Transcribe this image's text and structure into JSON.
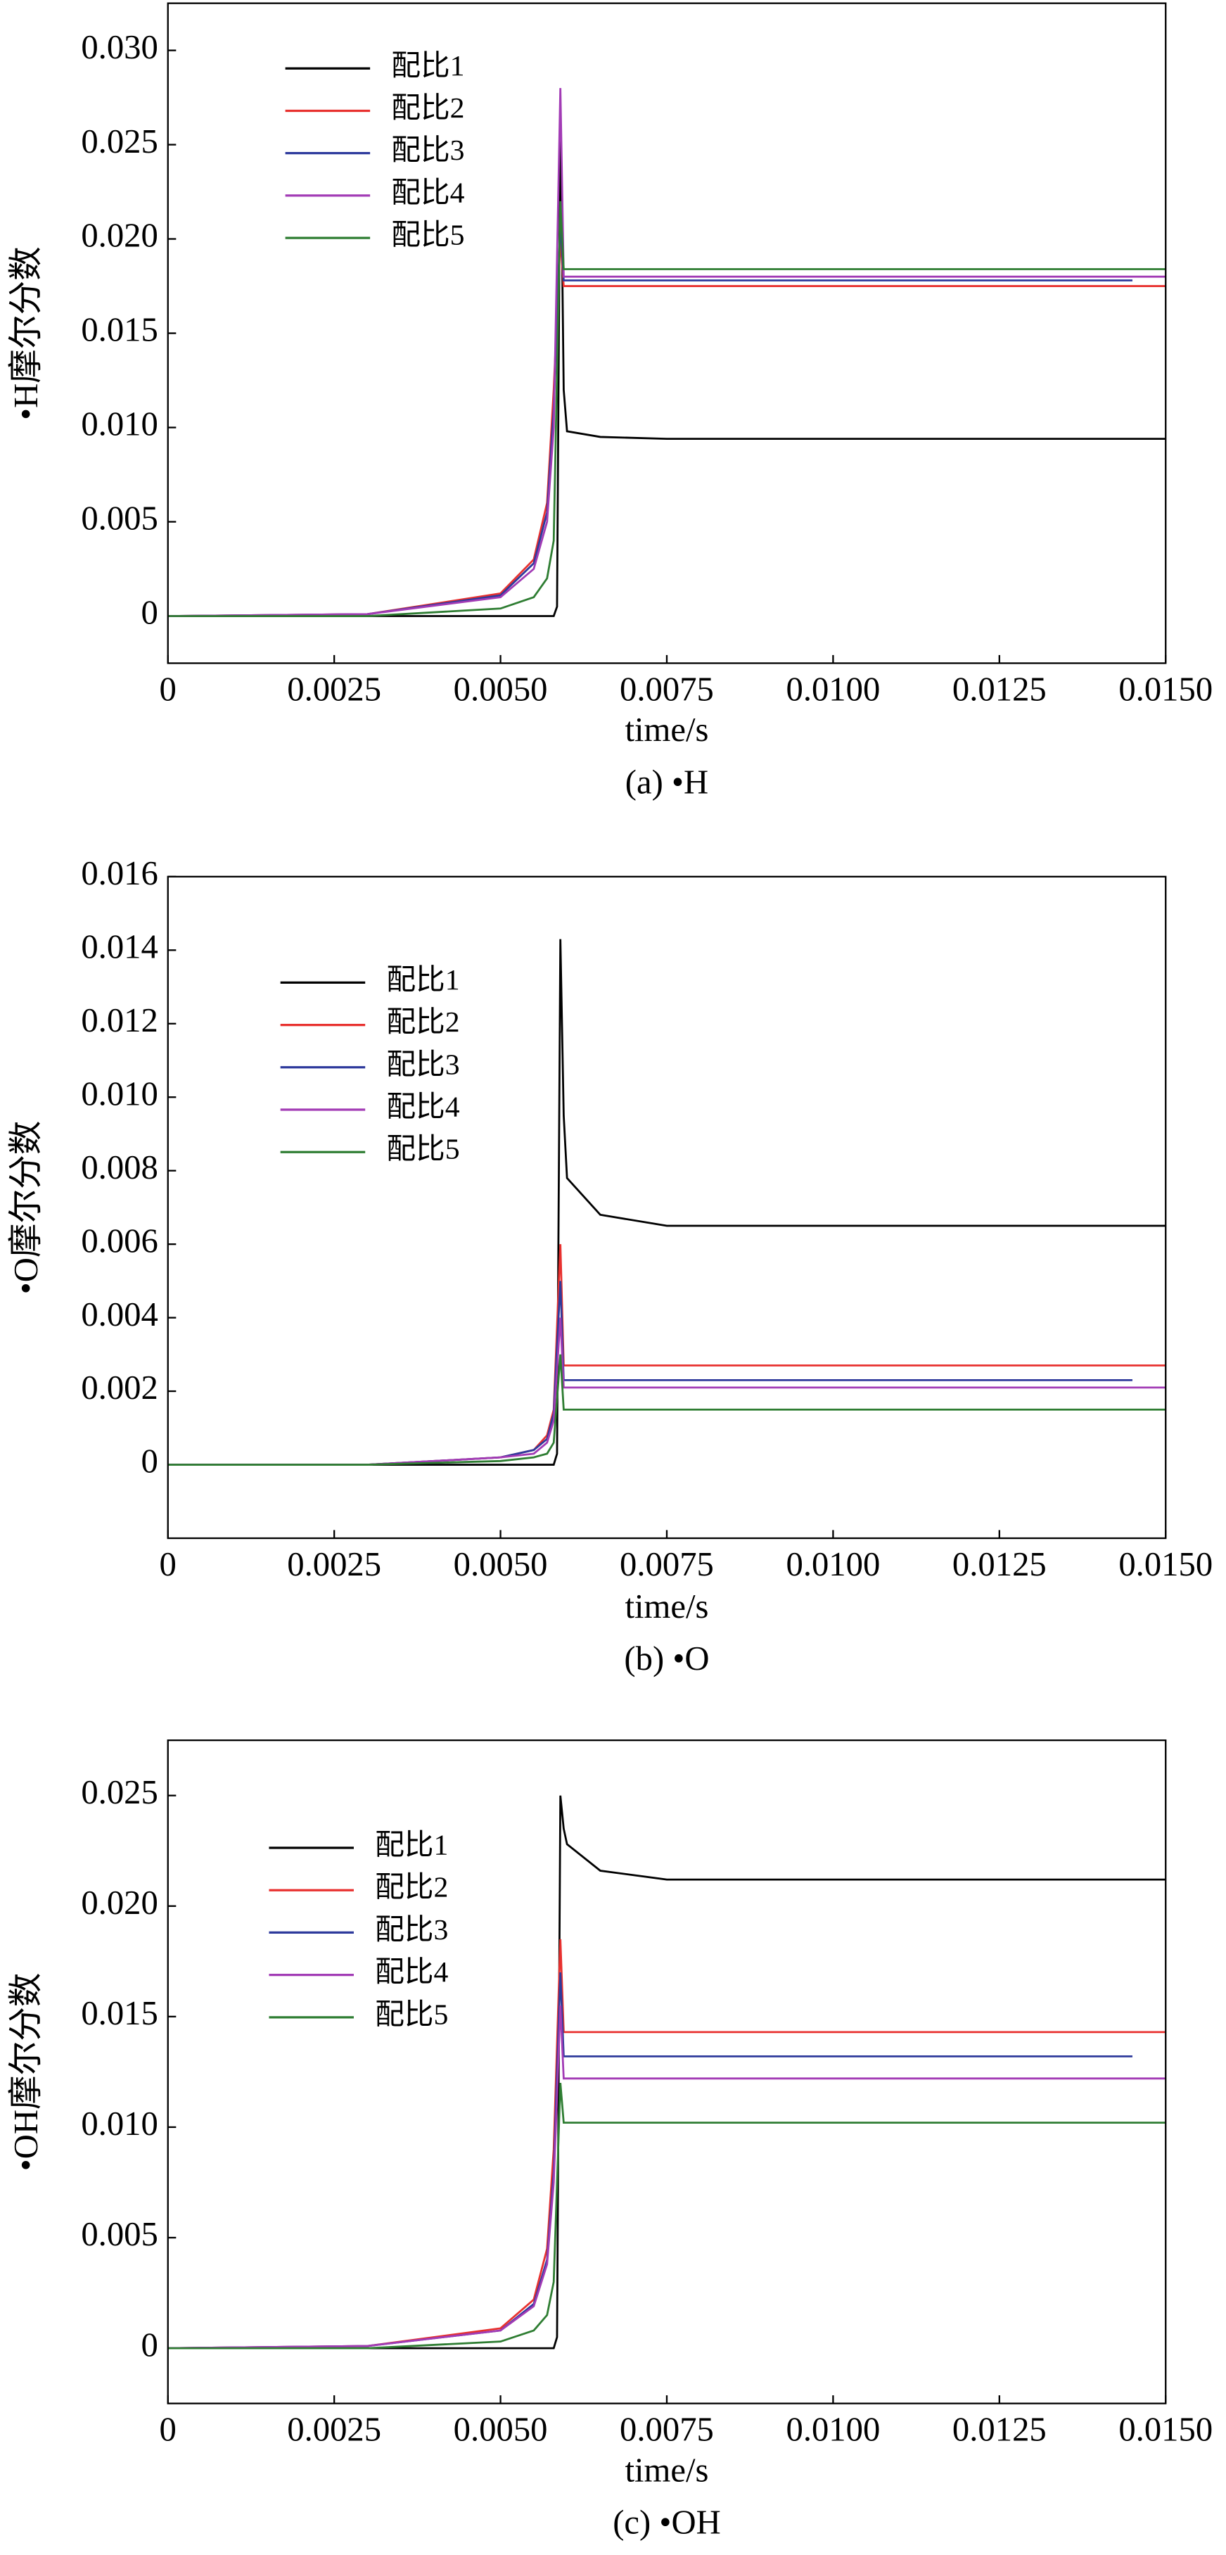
{
  "chart_data": [
    {
      "type": "line",
      "xlabel": "time/s",
      "ylabel": "•H摩尔分数",
      "caption": "(a) •H",
      "xlim": [
        0,
        0.015
      ],
      "ylim": [
        -0.0025,
        0.0325
      ],
      "xticks": [
        0,
        0.0025,
        {
          "value": 0.005,
          "label": "0.0050"
        },
        0.0075,
        {
          "value": 0.01,
          "label": "0.0100"
        },
        0.0125,
        {
          "value": 0.015,
          "label": "0.0150"
        }
      ],
      "yticks": [
        0,
        0.005,
        {
          "value": 0.01,
          "label": "0.010"
        },
        0.015,
        {
          "value": 0.02,
          "label": "0.020"
        },
        0.025,
        {
          "value": 0.03,
          "label": "0.030"
        }
      ],
      "series": [
        {
          "name": "配比1",
          "color": "#000000",
          "x": [
            0,
            0.003,
            0.005,
            0.0058,
            0.00585,
            0.0059,
            0.00595,
            0.006,
            0.0065,
            0.0075,
            0.015
          ],
          "values": [
            0,
            0,
            0,
            0,
            0.0005,
            0.027,
            0.012,
            0.0098,
            0.0095,
            0.0094,
            0.0094
          ]
        },
        {
          "name": "配比2",
          "color": "#e8312f",
          "x": [
            0,
            0.003,
            0.005,
            0.0055,
            0.0057,
            0.0058,
            0.0059,
            0.00595,
            0.015
          ],
          "values": [
            0,
            0.0001,
            0.0012,
            0.003,
            0.006,
            0.012,
            0.02,
            0.0175,
            0.0175
          ]
        },
        {
          "name": "配比3",
          "color": "#2e3a9c",
          "x": [
            0,
            0.003,
            0.005,
            0.0055,
            0.0057,
            0.0058,
            0.0059,
            0.00595,
            0.0145
          ],
          "values": [
            0,
            0.0001,
            0.0011,
            0.0028,
            0.0055,
            0.011,
            0.021,
            0.0178,
            0.0178
          ]
        },
        {
          "name": "配比4",
          "color": "#a23bb5",
          "x": [
            0,
            0.003,
            0.005,
            0.0055,
            0.0057,
            0.0058,
            0.0059,
            0.00595,
            0.015
          ],
          "values": [
            0,
            0.0001,
            0.001,
            0.0025,
            0.005,
            0.01,
            0.028,
            0.018,
            0.018
          ]
        },
        {
          "name": "配比5",
          "color": "#2e7d32",
          "x": [
            0,
            0.003,
            0.005,
            0.0055,
            0.0057,
            0.0058,
            0.0059,
            0.00595,
            0.015
          ],
          "values": [
            0,
            0,
            0.0004,
            0.001,
            0.002,
            0.004,
            0.022,
            0.0184,
            0.0184
          ]
        }
      ]
    },
    {
      "type": "line",
      "xlabel": "time/s",
      "ylabel": "•O摩尔分数",
      "caption": "(b) •O",
      "xlim": [
        0,
        0.015
      ],
      "ylim": [
        -0.002,
        0.016
      ],
      "xticks": [
        0,
        0.0025,
        {
          "value": 0.005,
          "label": "0.0050"
        },
        0.0075,
        {
          "value": 0.01,
          "label": "0.0100"
        },
        0.0125,
        {
          "value": 0.015,
          "label": "0.0150"
        }
      ],
      "yticks": [
        0,
        0.002,
        0.004,
        0.006,
        0.008,
        {
          "value": 0.01,
          "label": "0.010"
        },
        0.012,
        0.014,
        0.016
      ],
      "series": [
        {
          "name": "配比1",
          "color": "#000000",
          "x": [
            0,
            0.003,
            0.005,
            0.0058,
            0.00585,
            0.0059,
            0.00595,
            0.006,
            0.0065,
            0.0075,
            0.015
          ],
          "values": [
            0,
            0,
            0,
            0,
            0.0003,
            0.0143,
            0.0095,
            0.0078,
            0.0068,
            0.0065,
            0.0065
          ]
        },
        {
          "name": "配比2",
          "color": "#e8312f",
          "x": [
            0,
            0.003,
            0.005,
            0.0055,
            0.0057,
            0.0058,
            0.0059,
            0.00595,
            0.015
          ],
          "values": [
            0,
            0,
            0.0002,
            0.0004,
            0.0008,
            0.0015,
            0.006,
            0.0027,
            0.0027
          ]
        },
        {
          "name": "配比3",
          "color": "#2e3a9c",
          "x": [
            0,
            0.003,
            0.005,
            0.0055,
            0.0057,
            0.0058,
            0.0059,
            0.00595,
            0.0145
          ],
          "values": [
            0,
            0,
            0.0002,
            0.0004,
            0.0007,
            0.0014,
            0.005,
            0.0023,
            0.0023
          ]
        },
        {
          "name": "配比4",
          "color": "#a23bb5",
          "x": [
            0,
            0.003,
            0.005,
            0.0055,
            0.0057,
            0.0058,
            0.0059,
            0.00595,
            0.015
          ],
          "values": [
            0,
            0,
            0.0002,
            0.0003,
            0.0006,
            0.0012,
            0.004,
            0.0021,
            0.0021
          ]
        },
        {
          "name": "配比5",
          "color": "#2e7d32",
          "x": [
            0,
            0.003,
            0.005,
            0.0055,
            0.0057,
            0.0058,
            0.0059,
            0.00595,
            0.015
          ],
          "values": [
            0,
            0,
            0.0001,
            0.0002,
            0.0003,
            0.0006,
            0.003,
            0.0015,
            0.0015
          ]
        }
      ]
    },
    {
      "type": "line",
      "xlabel": "time/s",
      "ylabel": "•OH摩尔分数",
      "caption": "(c) •OH",
      "xlim": [
        0,
        0.015
      ],
      "ylim": [
        -0.0025,
        0.0275
      ],
      "xticks": [
        0,
        0.0025,
        {
          "value": 0.005,
          "label": "0.0050"
        },
        0.0075,
        {
          "value": 0.01,
          "label": "0.0100"
        },
        0.0125,
        {
          "value": 0.015,
          "label": "0.0150"
        }
      ],
      "yticks": [
        0,
        0.005,
        {
          "value": 0.01,
          "label": "0.010"
        },
        0.015,
        {
          "value": 0.02,
          "label": "0.020"
        },
        0.025
      ],
      "series": [
        {
          "name": "配比1",
          "color": "#000000",
          "x": [
            0,
            0.003,
            0.005,
            0.0058,
            0.00585,
            0.0059,
            0.00595,
            0.006,
            0.0065,
            0.0075,
            0.015
          ],
          "values": [
            0,
            0,
            0,
            0,
            0.0005,
            0.025,
            0.0235,
            0.0228,
            0.0216,
            0.0212,
            0.0212
          ]
        },
        {
          "name": "配比2",
          "color": "#e8312f",
          "x": [
            0,
            0.003,
            0.005,
            0.0055,
            0.0057,
            0.0058,
            0.0059,
            0.00595,
            0.015
          ],
          "values": [
            0,
            0.0001,
            0.0009,
            0.0022,
            0.0045,
            0.009,
            0.0185,
            0.0143,
            0.0143
          ]
        },
        {
          "name": "配比3",
          "color": "#2e3a9c",
          "x": [
            0,
            0.003,
            0.005,
            0.0055,
            0.0057,
            0.0058,
            0.0059,
            0.00595,
            0.0145
          ],
          "values": [
            0,
            0.0001,
            0.0008,
            0.002,
            0.004,
            0.008,
            0.017,
            0.0132,
            0.0132
          ]
        },
        {
          "name": "配比4",
          "color": "#a23bb5",
          "x": [
            0,
            0.003,
            0.005,
            0.0055,
            0.0057,
            0.0058,
            0.0059,
            0.00595,
            0.015
          ],
          "values": [
            0,
            0.0001,
            0.0008,
            0.0019,
            0.0038,
            0.0075,
            0.0155,
            0.0122,
            0.0122
          ]
        },
        {
          "name": "配比5",
          "color": "#2e7d32",
          "x": [
            0,
            0.003,
            0.005,
            0.0055,
            0.0057,
            0.0058,
            0.0059,
            0.00595,
            0.015
          ],
          "values": [
            0,
            0,
            0.0003,
            0.0008,
            0.0015,
            0.003,
            0.012,
            0.0102,
            0.0102
          ]
        }
      ]
    }
  ]
}
